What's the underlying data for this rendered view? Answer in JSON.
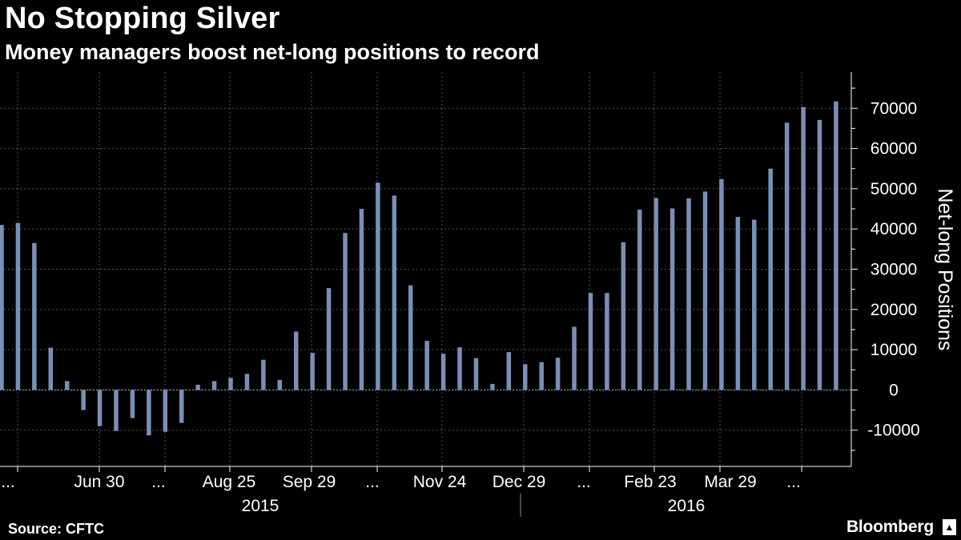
{
  "header": {
    "title": "No Stopping Silver",
    "subtitle": "Money managers boost net-long positions to record"
  },
  "footer": {
    "source": "Source: CFTC",
    "brand": "Bloomberg",
    "brand_icon": "bloomberg-terminal-icon"
  },
  "colors": {
    "background": "#000000",
    "bar": "#7b8eb4",
    "grid": "#555555",
    "text": "#ffffff"
  },
  "chart_data": {
    "type": "bar",
    "title": "No Stopping Silver",
    "subtitle": "Money managers boost net-long positions to record",
    "ylabel": "Net-long Positions",
    "ylim": [
      -19000,
      79000
    ],
    "yticks": [
      -10000,
      0,
      10000,
      20000,
      30000,
      40000,
      50000,
      60000,
      70000
    ],
    "grid": true,
    "x_tick_labels": [
      "...",
      "Jun 30",
      "...",
      "Aug 25",
      "Sep 29",
      "...",
      "Nov 24",
      "Dec 29",
      "...",
      "Feb 23",
      "Mar 29",
      "..."
    ],
    "year_labels": [
      "2015",
      "2016"
    ],
    "values": [
      41000,
      41500,
      36500,
      10500,
      2200,
      -5000,
      -9000,
      -10200,
      -7000,
      -11300,
      -10400,
      -8200,
      1300,
      2200,
      3000,
      4000,
      7500,
      2500,
      14500,
      9200,
      25300,
      39000,
      45000,
      51500,
      48300,
      26000,
      12200,
      9000,
      10600,
      7900,
      1500,
      9400,
      6400,
      6900,
      8000,
      15700,
      24100,
      24100,
      36700,
      44800,
      47700,
      45100,
      47600,
      49300,
      52400,
      43000,
      42300,
      55000,
      66400,
      70300,
      67100,
      71700
    ]
  }
}
